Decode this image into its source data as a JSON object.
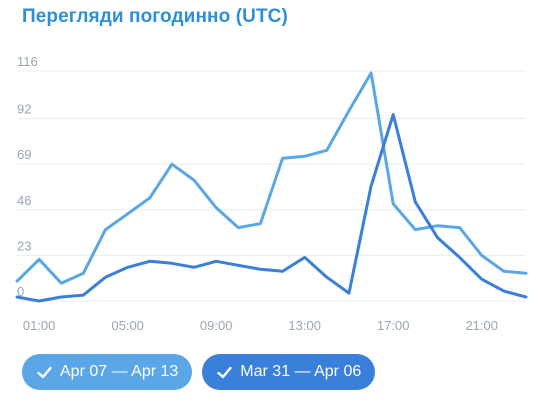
{
  "title": "Перегляди погодинно (UTC)",
  "chart_data": {
    "type": "line",
    "title": "Перегляди погодинно (UTC)",
    "x": [
      "00:00",
      "01:00",
      "02:00",
      "03:00",
      "04:00",
      "05:00",
      "06:00",
      "07:00",
      "08:00",
      "09:00",
      "10:00",
      "11:00",
      "12:00",
      "13:00",
      "14:00",
      "15:00",
      "16:00",
      "17:00",
      "18:00",
      "19:00",
      "20:00",
      "21:00",
      "22:00",
      "23:00"
    ],
    "x_tick_labels": [
      "01:00",
      "05:00",
      "09:00",
      "13:00",
      "17:00",
      "21:00"
    ],
    "y_ticks": [
      0,
      23,
      46,
      69,
      92,
      116
    ],
    "ylim": [
      0,
      116
    ],
    "grid": true,
    "series": [
      {
        "name": "Apr 07 — Apr 13",
        "color": "#5aa6e6",
        "values": [
          10,
          21,
          9,
          14,
          36,
          44,
          52,
          69,
          61,
          47,
          37,
          39,
          72,
          73,
          76,
          96,
          115,
          49,
          36,
          38,
          37,
          23,
          15,
          14
        ]
      },
      {
        "name": "Mar 31 — Apr 06",
        "color": "#3a7fd9",
        "values": [
          2,
          0,
          2,
          3,
          12,
          17,
          20,
          19,
          17,
          20,
          18,
          16,
          15,
          22,
          12,
          4,
          58,
          94,
          50,
          32,
          22,
          11,
          5,
          2
        ]
      }
    ]
  },
  "legend": [
    {
      "label": "Apr 07 — Apr 13",
      "color": "#5aa6e6"
    },
    {
      "label": "Mar 31 — Apr 06",
      "color": "#3a7fd9"
    }
  ]
}
